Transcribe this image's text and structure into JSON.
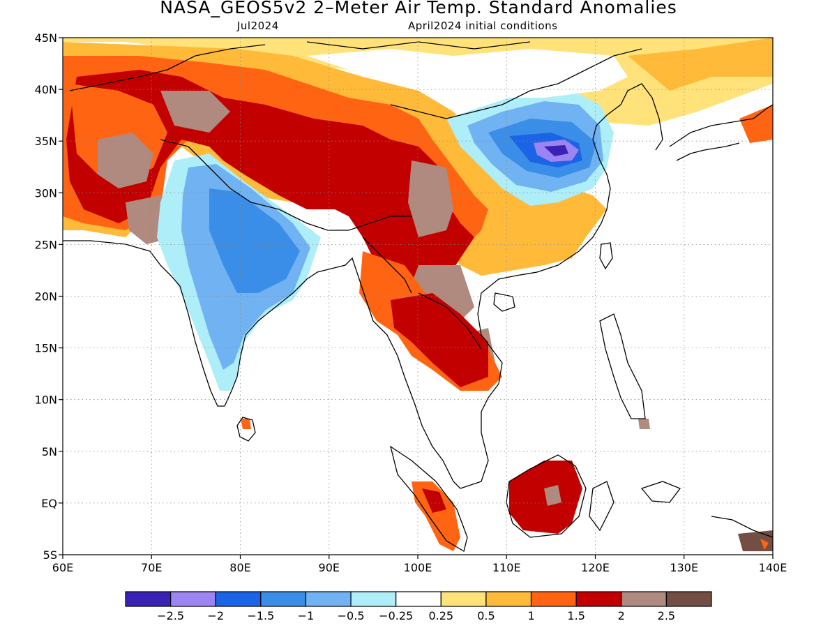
{
  "title": "NASA_GEOS5v2 2–Meter Air Temp. Standard Anomalies",
  "subtitle_left": "Jul2024",
  "subtitle_right": "April2024 initial conditions",
  "lat_labels": [
    "45N",
    "40N",
    "35N",
    "30N",
    "25N",
    "20N",
    "15N",
    "10N",
    "5N",
    "EQ",
    "5S"
  ],
  "lon_labels": [
    "60E",
    "70E",
    "80E",
    "90E",
    "100E",
    "110E",
    "120E",
    "130E",
    "140E"
  ],
  "colorbar": {
    "colors": [
      "#3a23b4",
      "#9c84f2",
      "#1c64e6",
      "#3a8ee8",
      "#70b2f2",
      "#aeeef8",
      "#ffffff",
      "#ffe27a",
      "#ffba3a",
      "#ff6412",
      "#c20000",
      "#b08a7e",
      "#744e44"
    ],
    "tick_labels": [
      "−2.5",
      "−2",
      "−1.5",
      "−1",
      "−0.5",
      "−0.25",
      "0.25",
      "0.5",
      "1",
      "1.5",
      "2",
      "2.5"
    ]
  },
  "map": {
    "lon_range": [
      60,
      140
    ],
    "lat_range": [
      -5,
      45
    ]
  }
}
